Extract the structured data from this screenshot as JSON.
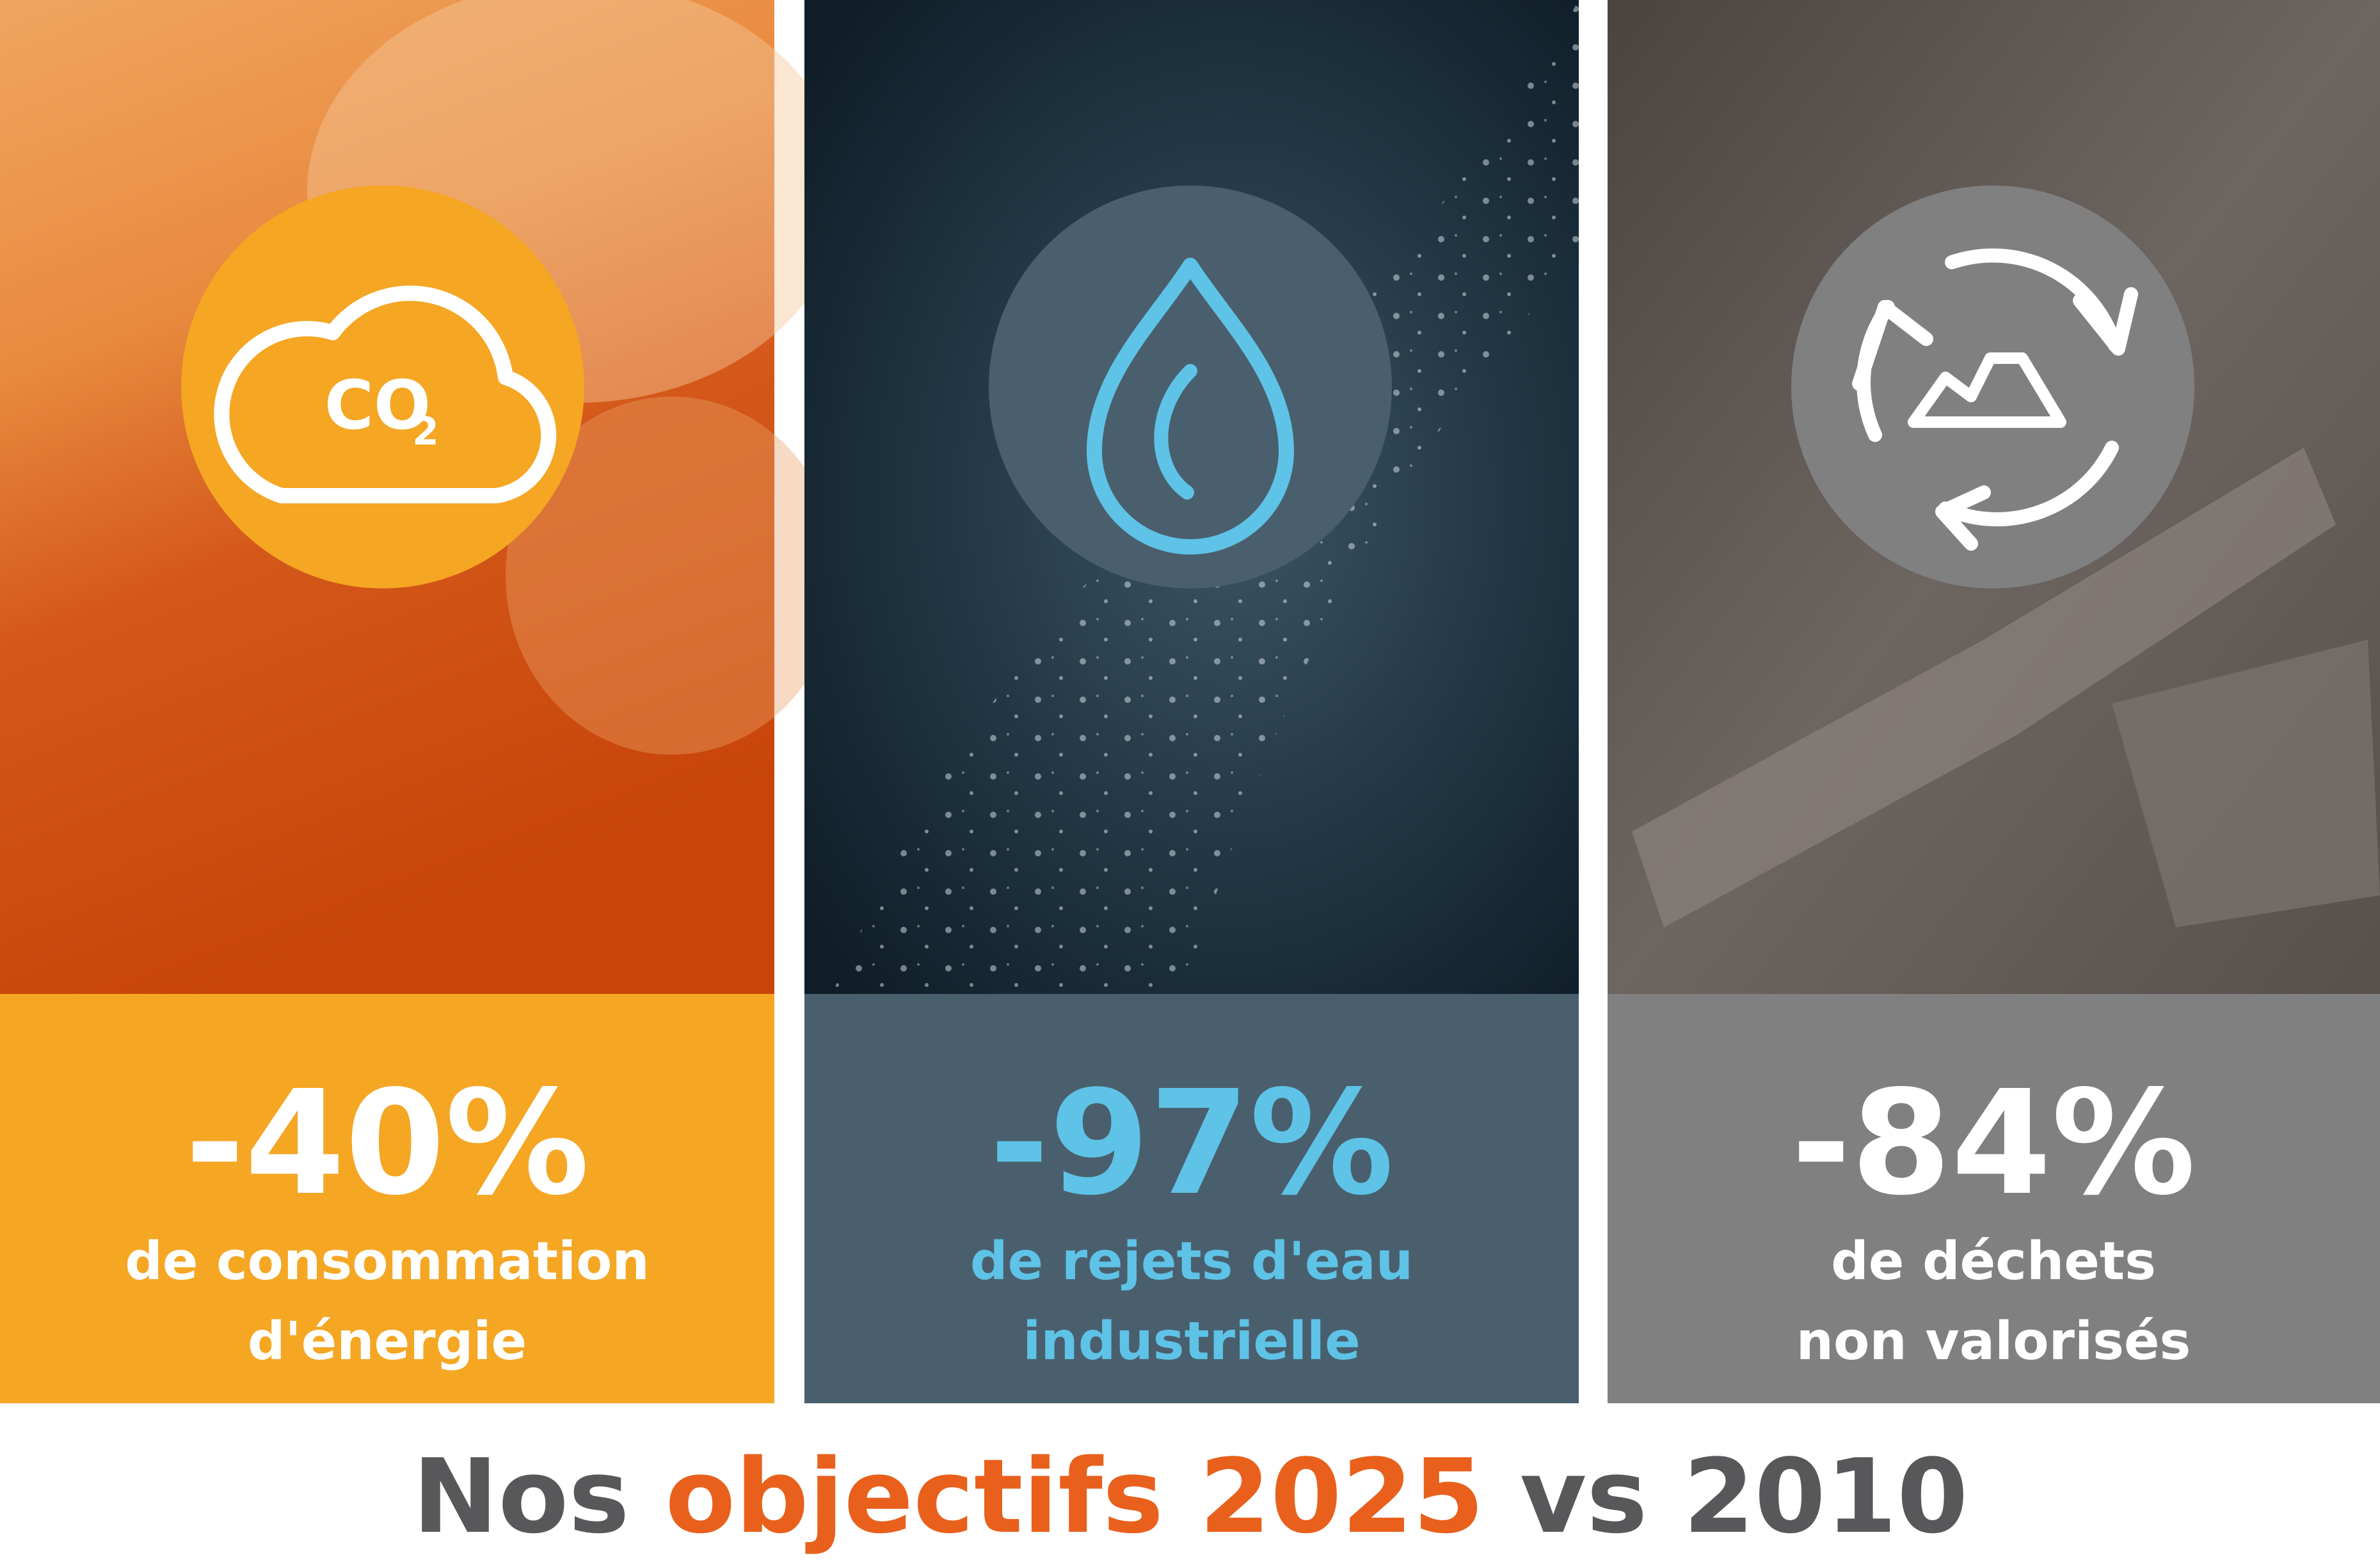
{
  "icon_text": {
    "main": "CO",
    "sub": "2"
  },
  "panels": [
    {
      "stat": "-40%",
      "line1": "de consommation",
      "line2": "d'énergie"
    },
    {
      "stat": "-97%",
      "line1": "de rejets d'eau",
      "line2": "industrielle"
    },
    {
      "stat": "-84%",
      "line1": "de déchets",
      "line2": "non valorisés"
    }
  ],
  "title": {
    "part1": "Nos",
    "part2": "objectifs 2025",
    "part3": "vs 2010"
  }
}
